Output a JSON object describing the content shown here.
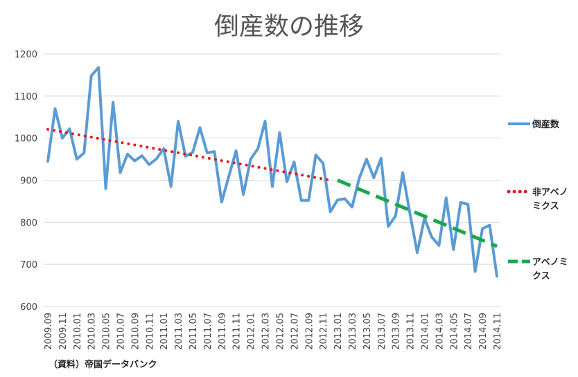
{
  "chart_data": {
    "type": "line",
    "title": "倒産数の推移",
    "source_note": "（資料）帝国データバンク",
    "ylim": [
      600,
      1200
    ],
    "y_ticks": [
      600,
      700,
      800,
      900,
      1000,
      1100,
      1200
    ],
    "grid": true,
    "legend_position": "right",
    "categories": [
      "2009.09",
      "2009.10",
      "2009.11",
      "2009.12",
      "2010.01",
      "2010.02",
      "2010.03",
      "2010.04",
      "2010.05",
      "2010.06",
      "2010.07",
      "2010.08",
      "2010.09",
      "2010.10",
      "2010.11",
      "2010.12",
      "2011.01",
      "2011.02",
      "2011.03",
      "2011.04",
      "2011.05",
      "2011.06",
      "2011.07",
      "2011.08",
      "2011.09",
      "2011.10",
      "2011.11",
      "2011.12",
      "2012.01",
      "2012.02",
      "2012.03",
      "2012.04",
      "2012.05",
      "2012.06",
      "2012.07",
      "2012.08",
      "2012.09",
      "2012.10",
      "2012.11",
      "2012.12",
      "2013.01",
      "2013.02",
      "2013.03",
      "2013.04",
      "2013.05",
      "2013.06",
      "2013.07",
      "2013.08",
      "2013.09",
      "2013.10",
      "2013.11",
      "2013.12",
      "2014.01",
      "2014.02",
      "2014.03",
      "2014.04",
      "2014.05",
      "2014.06",
      "2014.07",
      "2014.08",
      "2014.09",
      "2014.10",
      "2014.11"
    ],
    "tick_labels": [
      "2009.09",
      "2009.11",
      "2010.01",
      "2010.03",
      "2010.05",
      "2010.07",
      "2010.09",
      "2010.11",
      "2011.01",
      "2011.03",
      "2011.05",
      "2011.07",
      "2011.09",
      "2011.11",
      "2012.01",
      "2012.03",
      "2012.05",
      "2012.07",
      "2012.09",
      "2012.11",
      "2013.01",
      "2013.03",
      "2013.05",
      "2013.07",
      "2013.09",
      "2013.11",
      "2014.01",
      "2014.03",
      "2014.05",
      "2014.07",
      "2014.09",
      "2014.11"
    ],
    "series": [
      {
        "name": "倒産数",
        "color": "#5b9bd5",
        "style": "solid",
        "values": [
          945,
          1070,
          1000,
          1022,
          950,
          965,
          1148,
          1168,
          880,
          1085,
          918,
          962,
          946,
          958,
          937,
          951,
          975,
          885,
          1040,
          957,
          966,
          1025,
          965,
          968,
          848,
          910,
          970,
          866,
          950,
          975,
          1040,
          885,
          1013,
          896,
          943,
          852,
          852,
          960,
          940,
          825,
          853,
          856,
          836,
          905,
          950,
          906,
          952,
          790,
          815,
          918,
          820,
          728,
          810,
          765,
          745,
          858,
          735,
          847,
          843,
          683,
          785,
          793,
          672
        ]
      },
      {
        "name": "非アベノミクス",
        "color": "#e31a1c",
        "style": "dotted",
        "start": [
          "2009.09",
          1021
        ],
        "end": [
          "2012.12",
          900
        ]
      },
      {
        "name": "アベノミクス",
        "color": "#1aa64a",
        "style": "dashed",
        "start": [
          "2013.01",
          900
        ],
        "end": [
          "2014.11",
          743
        ]
      }
    ],
    "legend_lines": [
      [
        "倒産数"
      ],
      [
        "非アベノ",
        "ミクス"
      ],
      [
        "アベノミ",
        "クス"
      ]
    ]
  }
}
